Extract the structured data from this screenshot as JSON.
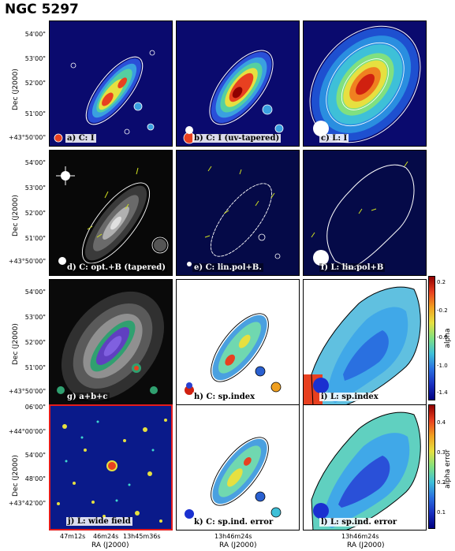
{
  "figure": {
    "title": "NGC 5297",
    "dec_label": "Dec (J2000)",
    "ra_label": "RA (J2000)",
    "dec_ticks": [
      "54'00\"",
      "53'00\"",
      "52'00\"",
      "51'00\"",
      "+43°50'00\""
    ],
    "dec_ticks_wide": [
      "06'00\"",
      "+44°00'00\"",
      "54'00\"",
      "48'00\"",
      "+43°42'00\""
    ],
    "ra_ticks_left": [
      "47m12s",
      "46m24s",
      "13h45m36s"
    ],
    "ra_tick_mid": "13h46m24s",
    "ra_tick_right": "13h46m24s"
  },
  "panels": [
    {
      "id": "a",
      "label": "a) C: I"
    },
    {
      "id": "b",
      "label": "b) C: I (uv-tapered)"
    },
    {
      "id": "c",
      "label": "c) L: I"
    },
    {
      "id": "d",
      "label": "d) C: opt.+B (tapered)"
    },
    {
      "id": "e",
      "label": "e) C: lin.pol+B."
    },
    {
      "id": "f",
      "label": "f) L: lin.pol+B"
    },
    {
      "id": "g",
      "label": "g) a+b+c"
    },
    {
      "id": "h",
      "label": "h) C: sp.index"
    },
    {
      "id": "i",
      "label": "i) L: sp.index"
    },
    {
      "id": "j",
      "label": "j) L: wide field"
    },
    {
      "id": "k",
      "label": "k) C: sp.ind. error"
    },
    {
      "id": "l",
      "label": "l) L: sp.ind. error"
    }
  ],
  "colorbars": {
    "alpha": {
      "label": "alpha",
      "ticks": [
        "0.2",
        "-0.2",
        "-0.6",
        "-1.0",
        "-1.4"
      ]
    },
    "alpha_error": {
      "label": "alpha error",
      "ticks": [
        "0.4",
        "0.3",
        "0.2",
        "0.1"
      ]
    }
  }
}
